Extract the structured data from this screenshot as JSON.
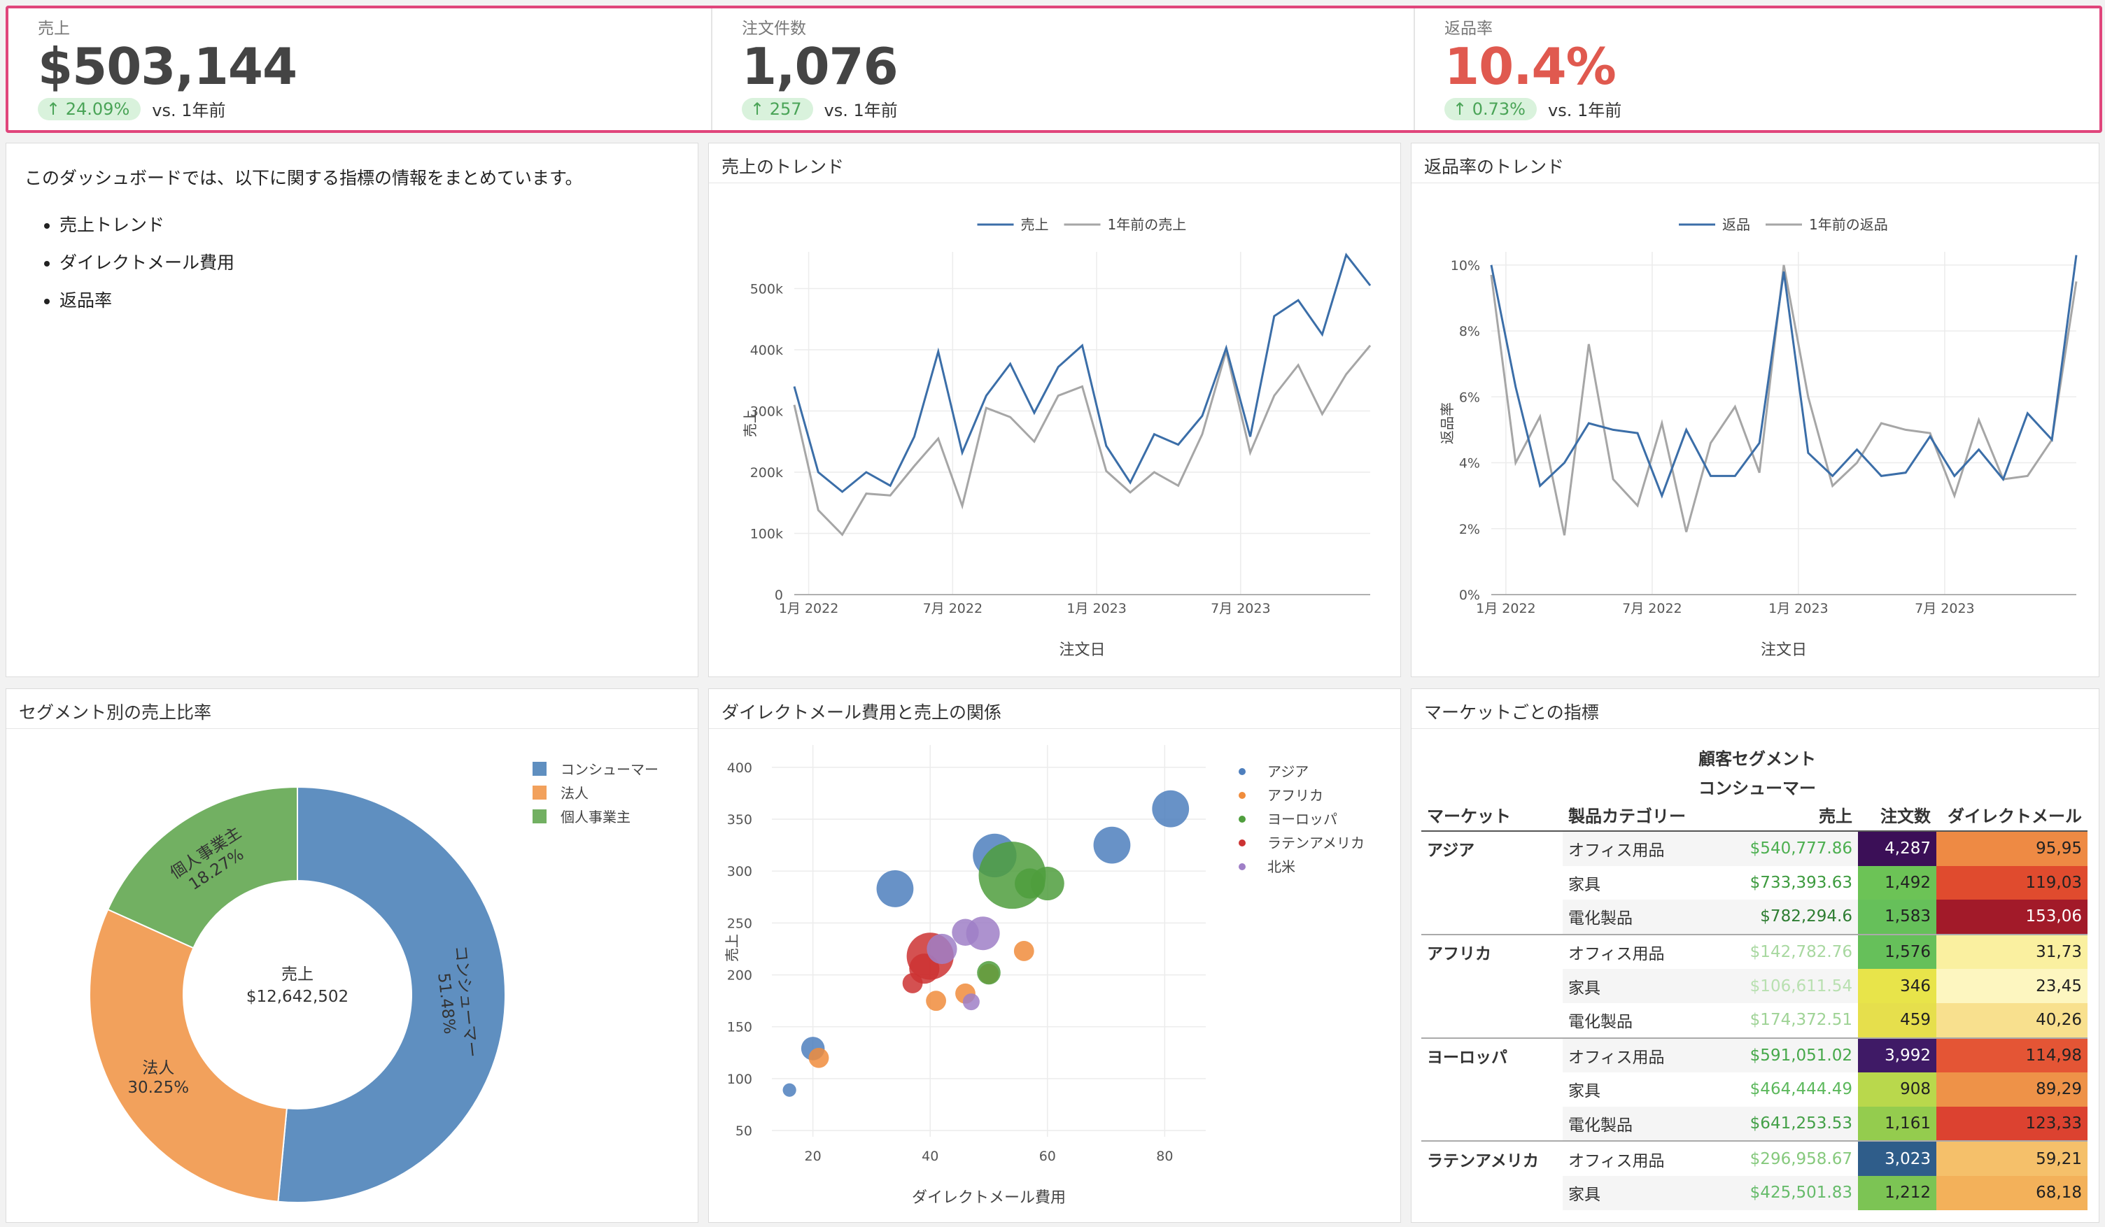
{
  "kpis": [
    {
      "label": "売上",
      "value": "$503,144",
      "delta": "↑ 24.09%",
      "vs": "vs. 1年前",
      "color": "#444444"
    },
    {
      "label": "注文件数",
      "value": "1,076",
      "delta": "↑ 257",
      "vs": "vs. 1年前",
      "color": "#444444"
    },
    {
      "label": "返品率",
      "value": "10.4%",
      "delta": "↑ 0.73%",
      "vs": "vs. 1年前",
      "color": "#e0594f"
    }
  ],
  "description": {
    "intro": "このダッシュボードでは、以下に関する指標の情報をまとめています。",
    "items": [
      "売上トレンド",
      "ダイレクトメール費用",
      "返品率"
    ]
  },
  "charts": {
    "sales_trend": {
      "title": "売上のトレンド",
      "chart_data": {
        "type": "line",
        "x_ticks": [
          "1月 2022",
          "7月 2022",
          "1月 2023",
          "7月 2023"
        ],
        "xlabel": "注文日",
        "ylabel": "売上",
        "y_ticks": [
          "0",
          "100k",
          "200k",
          "300k",
          "400k",
          "500k"
        ],
        "ylim": [
          0,
          560000
        ],
        "series": [
          {
            "name": "売上",
            "color": "#3b6ea8",
            "values": [
              340000,
              200000,
              168000,
              200000,
              178000,
              258000,
              397000,
              232000,
              325000,
              377000,
              297000,
              372000,
              407000,
              243000,
              183000,
              262000,
              245000,
              292000,
              403000,
              258000,
              455000,
              481000,
              425000,
              555000,
              505000
            ]
          },
          {
            "name": "1年前の売上",
            "color": "#a6a6a6",
            "values": [
              310000,
              138000,
              98000,
              165000,
              162000,
              210000,
              255000,
              145000,
              305000,
              290000,
              250000,
              325000,
              340000,
              202000,
              167000,
              200000,
              178000,
              262000,
              398000,
              232000,
              325000,
              375000,
              295000,
              360000,
              407000
            ]
          }
        ]
      }
    },
    "returns_trend": {
      "title": "返品率のトレンド",
      "chart_data": {
        "type": "line",
        "x_ticks": [
          "1月 2022",
          "7月 2022",
          "1月 2023",
          "7月 2023"
        ],
        "xlabel": "注文日",
        "ylabel": "返品率",
        "y_ticks": [
          "0%",
          "2%",
          "4%",
          "6%",
          "8%",
          "10%"
        ],
        "ylim": [
          0,
          10.4
        ],
        "series": [
          {
            "name": "返品",
            "color": "#3b6ea8",
            "values": [
              10.0,
              6.3,
              3.3,
              4.0,
              5.2,
              5.0,
              4.9,
              3.0,
              5.0,
              3.6,
              3.6,
              4.6,
              9.8,
              4.3,
              3.6,
              4.4,
              3.6,
              3.7,
              4.8,
              3.6,
              4.4,
              3.5,
              5.5,
              4.7,
              10.3
            ]
          },
          {
            "name": "1年前の返品",
            "color": "#a6a6a6",
            "values": [
              9.7,
              4.0,
              5.4,
              1.8,
              7.6,
              3.5,
              2.7,
              5.2,
              1.9,
              4.6,
              5.7,
              3.7,
              10.0,
              6.0,
              3.3,
              4.0,
              5.2,
              5.0,
              4.9,
              3.0,
              5.3,
              3.5,
              3.6,
              4.7,
              9.5
            ]
          }
        ]
      }
    },
    "segment_share": {
      "title": "セグメント別の売上比率",
      "center_label": "売上",
      "center_value": "$12,642,502",
      "chart_data": {
        "type": "pie",
        "slices": [
          {
            "name": "コンシューマー",
            "pct": "51.48%",
            "value": 51.48,
            "color": "#5f8fc0"
          },
          {
            "name": "法人",
            "pct": "30.25%",
            "value": 30.25,
            "color": "#f2a15c"
          },
          {
            "name": "個人事業主",
            "pct": "18.27%",
            "value": 18.27,
            "color": "#72b062"
          }
        ]
      }
    },
    "dm_scatter": {
      "title": "ダイレクトメール費用と売上の関係",
      "chart_data": {
        "type": "scatter",
        "xlabel": "ダイレクトメール費用",
        "ylabel": "売上",
        "x_ticks": [
          20,
          40,
          60,
          80
        ],
        "y_ticks": [
          50,
          100,
          150,
          200,
          250,
          300,
          350,
          400
        ],
        "xlim": [
          13,
          87
        ],
        "ylim": [
          44,
          408
        ],
        "series": [
          {
            "name": "アジア",
            "color": "#4e7fbd",
            "points": [
              [
                16,
                89,
                4
              ],
              [
                20,
                129,
                7
              ],
              [
                34,
                283,
                11
              ],
              [
                51,
                315,
                13
              ],
              [
                71,
                325,
                11
              ],
              [
                81,
                360,
                11
              ]
            ]
          },
          {
            "name": "アフリカ",
            "color": "#f08c3c",
            "points": [
              [
                21,
                120,
                6
              ],
              [
                41,
                175,
                6
              ],
              [
                46,
                182,
                6
              ],
              [
                50,
                201,
                6
              ],
              [
                56,
                223,
                6
              ]
            ]
          },
          {
            "name": "ヨーロッパ",
            "color": "#4f9e3d",
            "points": [
              [
                50,
                202,
                7
              ],
              [
                54,
                296,
                20
              ],
              [
                57,
                288,
                9
              ],
              [
                60,
                288,
                10
              ]
            ]
          },
          {
            "name": "ラテンアメリカ",
            "color": "#cc3333",
            "points": [
              [
                37,
                192,
                6
              ],
              [
                39,
                206,
                9
              ],
              [
                40,
                218,
                14
              ]
            ]
          },
          {
            "name": "北米",
            "color": "#9f7fc7",
            "points": [
              [
                42,
                225,
                9
              ],
              [
                46,
                241,
                8
              ],
              [
                49,
                240,
                10
              ],
              [
                47,
                174,
                5
              ]
            ]
          }
        ]
      }
    }
  },
  "market_table": {
    "title": "マーケットごとの指標",
    "group_header": "顧客セグメント",
    "segment": "コンシューマー",
    "columns": [
      "マーケット",
      "製品カテゴリー",
      "売上",
      "注文数",
      "ダイレクトメール"
    ],
    "rows": [
      {
        "market": "アジア",
        "category": "オフィス用品",
        "sales": "$540,777.86",
        "orders": "4,287",
        "dm": "95,95",
        "sales_color": "#4caf50",
        "orders_bg": "#3b0f57",
        "orders_fg": "#ffffff",
        "dm_bg": "#ee8a44"
      },
      {
        "market": "",
        "category": "家具",
        "sales": "$733,393.63",
        "orders": "1,492",
        "dm": "119,03",
        "sales_color": "#3d9b3f",
        "orders_bg": "#6cc356",
        "orders_fg": "#222222",
        "dm_bg": "#e04b2e"
      },
      {
        "market": "",
        "category": "電化製品",
        "sales": "$782,294.6",
        "orders": "1,583",
        "dm": "153,06",
        "sales_color": "#2e7d32",
        "orders_bg": "#66c05a",
        "orders_fg": "#222222",
        "dm_bg": "#a21a29"
      },
      {
        "market": "アフリカ",
        "category": "オフィス用品",
        "sales": "$142,782.76",
        "orders": "1,576",
        "dm": "31,73",
        "sales_color": "#a8d8a0",
        "orders_bg": "#66c05a",
        "orders_fg": "#222222",
        "dm_bg": "#faf0a0"
      },
      {
        "market": "",
        "category": "家具",
        "sales": "$106,611.54",
        "orders": "346",
        "dm": "23,45",
        "sales_color": "#b8e0b0",
        "orders_bg": "#e8e44a",
        "orders_fg": "#222222",
        "dm_bg": "#fdf6c0"
      },
      {
        "market": "",
        "category": "電化製品",
        "sales": "$174,372.51",
        "orders": "459",
        "dm": "40,26",
        "sales_color": "#9fd396",
        "orders_bg": "#e6df4c",
        "orders_fg": "#222222",
        "dm_bg": "#f8e08e"
      },
      {
        "market": "ヨーロッパ",
        "category": "オフィス用品",
        "sales": "$591,051.02",
        "orders": "3,992",
        "dm": "114,98",
        "sales_color": "#46a84a",
        "orders_bg": "#3f1a66",
        "orders_fg": "#ffffff",
        "dm_bg": "#e45535"
      },
      {
        "market": "",
        "category": "家具",
        "sales": "$464,444.49",
        "orders": "908",
        "dm": "89,29",
        "sales_color": "#5cb85c",
        "orders_bg": "#b9d84c",
        "orders_fg": "#222222",
        "dm_bg": "#ee9248"
      },
      {
        "market": "",
        "category": "電化製品",
        "sales": "$641,253.53",
        "orders": "1,161",
        "dm": "123,33",
        "sales_color": "#43a047",
        "orders_bg": "#94cc4e",
        "orders_fg": "#222222",
        "dm_bg": "#dc4230"
      },
      {
        "market": "ラテンアメリカ",
        "category": "オフィス用品",
        "sales": "$296,958.67",
        "orders": "3,023",
        "dm": "59,21",
        "sales_color": "#86c97d",
        "orders_bg": "#2f5d8a",
        "orders_fg": "#ffffff",
        "dm_bg": "#f5c06a"
      },
      {
        "market": "",
        "category": "家具",
        "sales": "$425,501.83",
        "orders": "1,212",
        "dm": "68,18",
        "sales_color": "#66bb6a",
        "orders_bg": "#7cc454",
        "orders_fg": "#222222",
        "dm_bg": "#f3b15a"
      }
    ]
  }
}
